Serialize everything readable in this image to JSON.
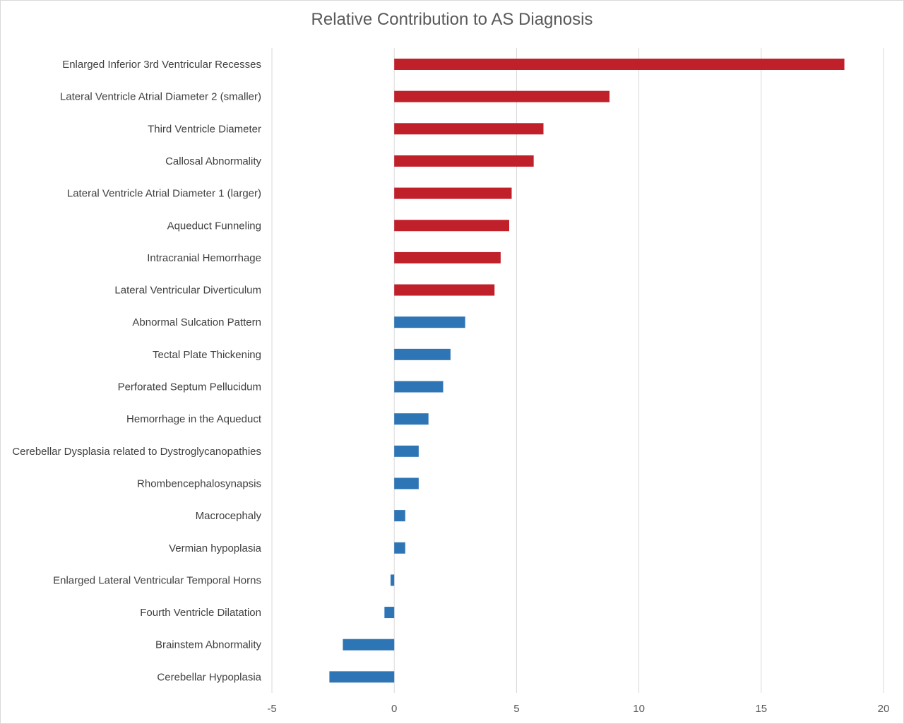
{
  "chart_data": {
    "type": "bar",
    "orientation": "horizontal",
    "title": "Relative Contribution to AS Diagnosis",
    "xlim": [
      -5,
      20
    ],
    "xticks": [
      -5,
      0,
      5,
      10,
      15,
      20
    ],
    "grid": "vertical",
    "legend": "none",
    "categories": [
      "Enlarged Inferior 3rd Ventricular Recesses",
      "Lateral Ventricle Atrial Diameter 2 (smaller)",
      "Third Ventricle Diameter",
      "Callosal Abnormality",
      "Lateral Ventricle Atrial Diameter 1 (larger)",
      "Aqueduct Funneling",
      "Intracranial Hemorrhage",
      "Lateral Ventricular Diverticulum",
      "Abnormal Sulcation Pattern",
      "Tectal Plate Thickening",
      "Perforated Septum Pellucidum",
      "Hemorrhage in the Aqueduct",
      "Cerebellar Dysplasia related to Dystroglycanopathies",
      "Rhombencephalosynapsis",
      "Macrocephaly",
      "Vermian hypoplasia",
      "Enlarged Lateral Ventricular Temporal Horns",
      "Fourth Ventricle Dilatation",
      "Brainstem Abnormality",
      "Cerebellar Hypoplasia"
    ],
    "values": [
      18.4,
      8.8,
      6.1,
      5.7,
      4.8,
      4.7,
      4.35,
      4.1,
      2.9,
      2.3,
      2.0,
      1.4,
      1.0,
      1.0,
      0.45,
      0.45,
      -0.15,
      -0.4,
      -2.1,
      -2.65
    ],
    "bar_colors": [
      "#c0202a",
      "#c0202a",
      "#c0202a",
      "#c0202a",
      "#c0202a",
      "#c0202a",
      "#c0202a",
      "#c0202a",
      "#2e75b6",
      "#2e75b6",
      "#2e75b6",
      "#2e75b6",
      "#2e75b6",
      "#2e75b6",
      "#2e75b6",
      "#2e75b6",
      "#2e75b6",
      "#2e75b6",
      "#2e75b6",
      "#2e75b6"
    ],
    "colors": {
      "high": "#c0202a",
      "low": "#2e75b6",
      "grid": "#d9d9d9",
      "text": "#404040",
      "tick_text": "#595959"
    }
  }
}
